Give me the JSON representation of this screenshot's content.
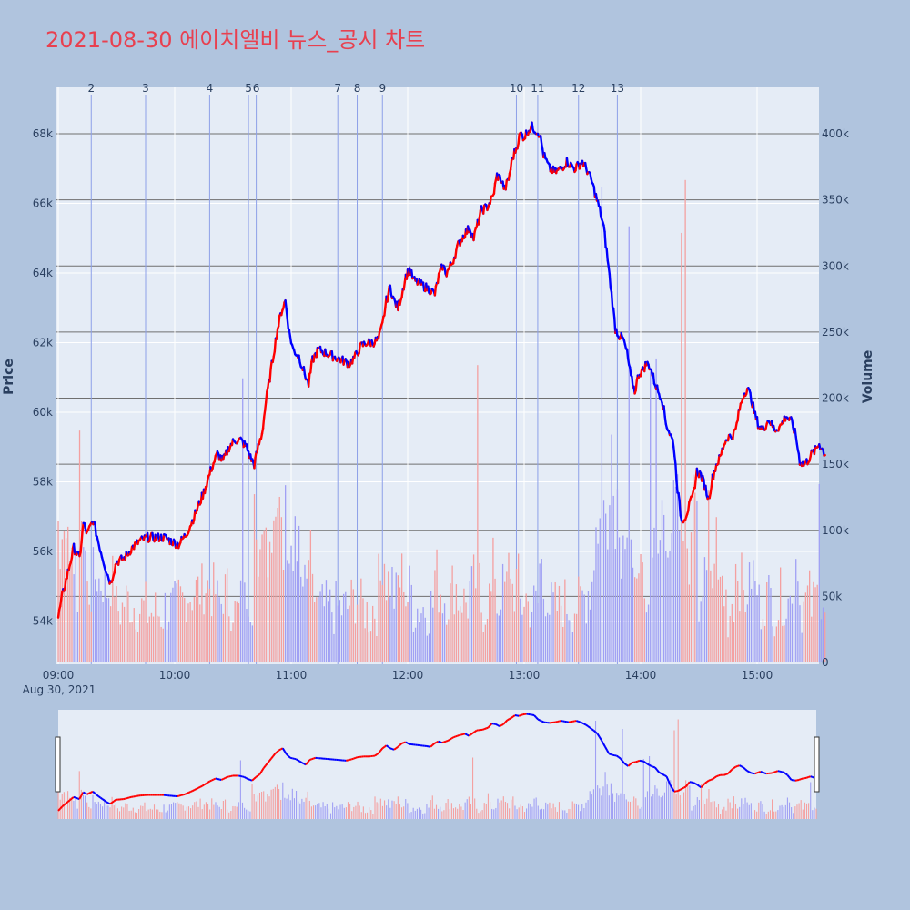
{
  "title": "2021-08-30 에이치엘비 뉴스_공시 차트",
  "colors": {
    "up": "#ff0000",
    "down": "#0000ff",
    "vol_up": "#f4a0a0",
    "vol_down": "#a0a0f4",
    "news_line": "#8da0e8",
    "bg": "#b0c4de",
    "plot_bg": "#e5ecf6",
    "title": "#e8404f"
  },
  "chart_data": {
    "type": "line",
    "xaxis": {
      "start_label": "09:00",
      "date_label": "Aug 30, 2021",
      "tick_labels": [
        "09:00",
        "10:00",
        "11:00",
        "12:00",
        "13:00",
        "14:00",
        "15:00"
      ],
      "range_minutes": [
        0,
        395
      ]
    },
    "yaxis_price": {
      "title": "Price",
      "range": [
        52900,
        68800
      ],
      "tick_labels": [
        "54k",
        "56k",
        "58k",
        "60k",
        "62k",
        "64k",
        "66k",
        "68k"
      ],
      "tick_values": [
        54000,
        56000,
        58000,
        60000,
        62000,
        64000,
        66000,
        68000
      ]
    },
    "yaxis_volume": {
      "title": "Volume",
      "range": [
        0,
        400000
      ],
      "tick_labels": [
        "0",
        "50k",
        "100k",
        "150k",
        "200k",
        "250k",
        "300k",
        "350k",
        "400k"
      ],
      "tick_values": [
        0,
        50000,
        100000,
        150000,
        200000,
        250000,
        300000,
        350000,
        400000
      ]
    },
    "price_anchors": [
      [
        0,
        54100
      ],
      [
        2,
        54700
      ],
      [
        5,
        55400
      ],
      [
        8,
        56100
      ],
      [
        11,
        55800
      ],
      [
        13,
        56800
      ],
      [
        15,
        56500
      ],
      [
        18,
        56900
      ],
      [
        21,
        56200
      ],
      [
        25,
        55400
      ],
      [
        27,
        55100
      ],
      [
        30,
        55700
      ],
      [
        34,
        55800
      ],
      [
        38,
        56100
      ],
      [
        42,
        56300
      ],
      [
        46,
        56400
      ],
      [
        50,
        56400
      ],
      [
        55,
        56400
      ],
      [
        58,
        56300
      ],
      [
        62,
        56200
      ],
      [
        66,
        56500
      ],
      [
        70,
        57000
      ],
      [
        75,
        57700
      ],
      [
        79,
        58400
      ],
      [
        82,
        58800
      ],
      [
        85,
        58600
      ],
      [
        88,
        59000
      ],
      [
        91,
        59200
      ],
      [
        94,
        59200
      ],
      [
        97,
        59000
      ],
      [
        99,
        58700
      ],
      [
        101,
        58500
      ],
      [
        103,
        59000
      ],
      [
        105,
        59400
      ],
      [
        107,
        60300
      ],
      [
        109,
        61000
      ],
      [
        111,
        61700
      ],
      [
        113,
        62400
      ],
      [
        115,
        62900
      ],
      [
        117,
        63200
      ],
      [
        119,
        62300
      ],
      [
        121,
        61800
      ],
      [
        124,
        61600
      ],
      [
        127,
        61100
      ],
      [
        129,
        60800
      ],
      [
        131,
        61500
      ],
      [
        134,
        61800
      ],
      [
        138,
        61700
      ],
      [
        142,
        61600
      ],
      [
        146,
        61500
      ],
      [
        150,
        61400
      ],
      [
        153,
        61600
      ],
      [
        156,
        61900
      ],
      [
        159,
        62000
      ],
      [
        162,
        62000
      ],
      [
        165,
        62100
      ],
      [
        167,
        62500
      ],
      [
        169,
        63200
      ],
      [
        171,
        63600
      ],
      [
        173,
        63200
      ],
      [
        175,
        63000
      ],
      [
        177,
        63400
      ],
      [
        179,
        63900
      ],
      [
        181,
        64100
      ],
      [
        183,
        63800
      ],
      [
        186,
        63700
      ],
      [
        189,
        63600
      ],
      [
        192,
        63500
      ],
      [
        194,
        63400
      ],
      [
        196,
        63900
      ],
      [
        198,
        64200
      ],
      [
        200,
        64000
      ],
      [
        203,
        64300
      ],
      [
        206,
        64800
      ],
      [
        209,
        65100
      ],
      [
        212,
        65300
      ],
      [
        214,
        65000
      ],
      [
        216,
        65400
      ],
      [
        218,
        65800
      ],
      [
        221,
        65900
      ],
      [
        224,
        66200
      ],
      [
        226,
        66800
      ],
      [
        228,
        66700
      ],
      [
        230,
        66400
      ],
      [
        232,
        66700
      ],
      [
        234,
        67300
      ],
      [
        236,
        67600
      ],
      [
        238,
        68000
      ],
      [
        240,
        67900
      ],
      [
        242,
        68100
      ],
      [
        244,
        68200
      ],
      [
        246,
        68100
      ],
      [
        248,
        68000
      ],
      [
        250,
        67400
      ],
      [
        253,
        67000
      ],
      [
        256,
        66900
      ],
      [
        259,
        67000
      ],
      [
        262,
        67200
      ],
      [
        266,
        67000
      ],
      [
        270,
        67200
      ],
      [
        273,
        66900
      ],
      [
        275,
        66600
      ],
      [
        277,
        66200
      ],
      [
        279,
        65800
      ],
      [
        281,
        65300
      ],
      [
        283,
        64400
      ],
      [
        285,
        63400
      ],
      [
        287,
        62400
      ],
      [
        289,
        62200
      ],
      [
        291,
        62100
      ],
      [
        293,
        61700
      ],
      [
        295,
        61000
      ],
      [
        297,
        60600
      ],
      [
        299,
        61100
      ],
      [
        301,
        61200
      ],
      [
        303,
        61400
      ],
      [
        305,
        61300
      ],
      [
        307,
        60900
      ],
      [
        309,
        60600
      ],
      [
        311,
        60400
      ],
      [
        313,
        59700
      ],
      [
        315,
        59400
      ],
      [
        317,
        59100
      ],
      [
        319,
        57800
      ],
      [
        321,
        56900
      ],
      [
        323,
        57000
      ],
      [
        325,
        57300
      ],
      [
        327,
        57600
      ],
      [
        329,
        58300
      ],
      [
        331,
        58200
      ],
      [
        333,
        57900
      ],
      [
        335,
        57500
      ],
      [
        337,
        58100
      ],
      [
        339,
        58500
      ],
      [
        341,
        58700
      ],
      [
        343,
        59100
      ],
      [
        345,
        59300
      ],
      [
        347,
        59300
      ],
      [
        349,
        59500
      ],
      [
        351,
        60100
      ],
      [
        353,
        60500
      ],
      [
        355,
        60700
      ],
      [
        357,
        60400
      ],
      [
        359,
        59900
      ],
      [
        361,
        59600
      ],
      [
        363,
        59500
      ],
      [
        366,
        59800
      ],
      [
        369,
        59500
      ],
      [
        372,
        59600
      ],
      [
        375,
        59900
      ],
      [
        378,
        59700
      ],
      [
        380,
        59300
      ],
      [
        382,
        58600
      ],
      [
        384,
        58500
      ],
      [
        386,
        58600
      ],
      [
        388,
        58800
      ],
      [
        390,
        58900
      ],
      [
        392,
        59100
      ],
      [
        394,
        58900
      ],
      [
        395,
        58800
      ]
    ],
    "volume_spikes": [
      [
        95,
        215000
      ],
      [
        216,
        225000
      ],
      [
        280,
        360000
      ],
      [
        294,
        330000
      ],
      [
        305,
        220000
      ],
      [
        308,
        230000
      ],
      [
        321,
        325000
      ],
      [
        323,
        365000
      ],
      [
        335,
        130000
      ],
      [
        339,
        110000
      ],
      [
        392,
        135000
      ]
    ],
    "news_markers": [
      {
        "label": "2",
        "minute": 17
      },
      {
        "label": "3",
        "minute": 45
      },
      {
        "label": "4",
        "minute": 78
      },
      {
        "label": "5",
        "minute": 98
      },
      {
        "label": "6",
        "minute": 102
      },
      {
        "label": "7",
        "minute": 144
      },
      {
        "label": "8",
        "minute": 154
      },
      {
        "label": "9",
        "minute": 167
      },
      {
        "label": "10",
        "minute": 236
      },
      {
        "label": "11",
        "minute": 247
      },
      {
        "label": "12",
        "minute": 268
      },
      {
        "label": "13",
        "minute": 288
      }
    ],
    "grid": true
  }
}
